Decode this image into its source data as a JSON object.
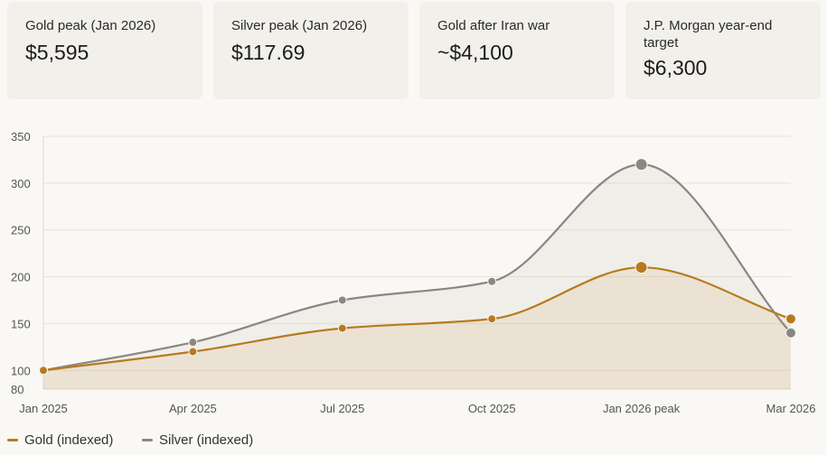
{
  "cards": [
    {
      "label": "Gold peak (Jan 2026)",
      "value": "$5,595"
    },
    {
      "label": "Silver peak (Jan 2026)",
      "value": "$117.69"
    },
    {
      "label": "Gold after Iran war",
      "value": "~$4,100"
    },
    {
      "label": "J.P. Morgan year-end target",
      "value": "$6,300"
    }
  ],
  "legend": {
    "gold": "Gold (indexed)",
    "silver": "Silver (indexed)"
  },
  "chart_data": {
    "type": "area",
    "categories": [
      "Jan 2025",
      "Apr 2025",
      "Jul 2025",
      "Oct 2025",
      "Jan 2026 peak",
      "Mar 2026"
    ],
    "series": [
      {
        "name": "Gold (indexed)",
        "color": "#b87a1f",
        "values": [
          100,
          120,
          145,
          155,
          210,
          155
        ]
      },
      {
        "name": "Silver (indexed)",
        "color": "#8a8783",
        "values": [
          100,
          130,
          175,
          195,
          320,
          140
        ]
      }
    ],
    "yticks": [
      80,
      100,
      150,
      200,
      250,
      300,
      350
    ],
    "ylim": [
      80,
      350
    ],
    "highlight_index": 4,
    "grid": true,
    "title": "",
    "xlabel": "",
    "ylabel": ""
  }
}
